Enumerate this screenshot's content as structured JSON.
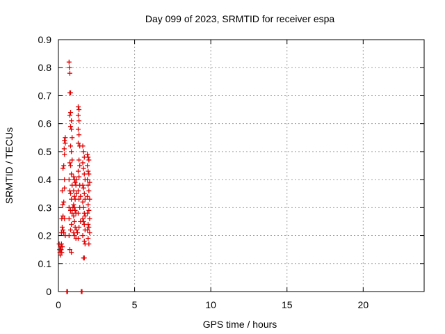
{
  "chart_data": {
    "type": "scatter",
    "title": "Day 099 of 2023, SRMTID for receiver espa",
    "xlabel": "GPS time / hours",
    "ylabel": "SRMTID / TECUs",
    "xlim": [
      0,
      24
    ],
    "ylim": [
      0,
      0.9
    ],
    "xticks": [
      0,
      5,
      10,
      15,
      20
    ],
    "xtick_labels": [
      "0",
      "5",
      "10",
      "15",
      "20"
    ],
    "yticks": [
      0,
      0.1,
      0.2,
      0.3,
      0.4,
      0.5,
      0.6,
      0.7,
      0.8,
      0.9
    ],
    "ytick_labels": [
      "0",
      "0.1",
      "0.2",
      "0.3",
      "0.4",
      "0.5",
      "0.6",
      "0.7",
      "0.8",
      "0.9"
    ],
    "grid": true,
    "marker": "plus",
    "color": "#e00000",
    "series": [
      {
        "points": [
          [
            0.05,
            0.17
          ],
          [
            0.08,
            0.15
          ],
          [
            0.1,
            0.14
          ],
          [
            0.12,
            0.13
          ],
          [
            0.15,
            0.16
          ],
          [
            0.18,
            0.15
          ],
          [
            0.2,
            0.17
          ],
          [
            0.22,
            0.14
          ],
          [
            0.12,
            0.15
          ],
          [
            0.25,
            0.16
          ],
          [
            0.2,
            0.21
          ],
          [
            0.25,
            0.23
          ],
          [
            0.3,
            0.22
          ],
          [
            0.22,
            0.26
          ],
          [
            0.3,
            0.27
          ],
          [
            0.35,
            0.21
          ],
          [
            0.28,
            0.31
          ],
          [
            0.35,
            0.32
          ],
          [
            0.25,
            0.36
          ],
          [
            0.4,
            0.37
          ],
          [
            0.3,
            0.44
          ],
          [
            0.35,
            0.45
          ],
          [
            0.4,
            0.49
          ],
          [
            0.38,
            0.51
          ],
          [
            0.45,
            0.53
          ],
          [
            0.4,
            0.54
          ],
          [
            0.45,
            0.55
          ],
          [
            0.4,
            0.4
          ],
          [
            0.45,
            0.2
          ],
          [
            0.4,
            0.26
          ],
          [
            0.7,
            0.82
          ],
          [
            0.72,
            0.8
          ],
          [
            0.75,
            0.78
          ],
          [
            0.8,
            0.71
          ],
          [
            0.75,
            0.71
          ],
          [
            0.75,
            0.63
          ],
          [
            0.8,
            0.64
          ],
          [
            0.85,
            0.61
          ],
          [
            0.8,
            0.59
          ],
          [
            0.85,
            0.58
          ],
          [
            0.9,
            0.55
          ],
          [
            0.8,
            0.52
          ],
          [
            0.85,
            0.5
          ],
          [
            0.9,
            0.47
          ],
          [
            0.75,
            0.46
          ],
          [
            0.8,
            0.45
          ],
          [
            0.85,
            0.42
          ],
          [
            0.7,
            0.4
          ],
          [
            0.75,
            0.36
          ],
          [
            0.8,
            0.35
          ],
          [
            0.85,
            0.33
          ],
          [
            0.7,
            0.3
          ],
          [
            0.8,
            0.29
          ],
          [
            0.9,
            0.28
          ],
          [
            0.7,
            0.26
          ],
          [
            0.85,
            0.24
          ],
          [
            0.8,
            0.22
          ],
          [
            0.7,
            0.2
          ],
          [
            0.75,
            0.15
          ],
          [
            0.85,
            0.14
          ],
          [
            0.9,
            0.38
          ],
          [
            0.95,
            0.3
          ],
          [
            1.0,
            0.41
          ],
          [
            1.05,
            0.4
          ],
          [
            1.1,
            0.39
          ],
          [
            1.0,
            0.36
          ],
          [
            1.05,
            0.34
          ],
          [
            1.1,
            0.33
          ],
          [
            1.0,
            0.31
          ],
          [
            1.05,
            0.3
          ],
          [
            1.1,
            0.29
          ],
          [
            1.0,
            0.27
          ],
          [
            1.05,
            0.25
          ],
          [
            1.1,
            0.23
          ],
          [
            1.0,
            0.21
          ],
          [
            1.05,
            0.2
          ],
          [
            1.15,
            0.19
          ],
          [
            1.2,
            0.22
          ],
          [
            1.15,
            0.28
          ],
          [
            1.2,
            0.35
          ],
          [
            1.15,
            0.38
          ],
          [
            1.2,
            0.4
          ],
          [
            1.3,
            0.66
          ],
          [
            1.35,
            0.65
          ],
          [
            1.3,
            0.63
          ],
          [
            1.35,
            0.61
          ],
          [
            1.3,
            0.58
          ],
          [
            1.35,
            0.56
          ],
          [
            1.3,
            0.53
          ],
          [
            1.4,
            0.52
          ],
          [
            1.35,
            0.47
          ],
          [
            1.4,
            0.45
          ],
          [
            1.3,
            0.43
          ],
          [
            1.35,
            0.41
          ],
          [
            1.4,
            0.38
          ],
          [
            1.3,
            0.36
          ],
          [
            1.45,
            0.34
          ],
          [
            1.35,
            0.33
          ],
          [
            1.4,
            0.3
          ],
          [
            1.3,
            0.28
          ],
          [
            1.45,
            0.25
          ],
          [
            1.35,
            0.23
          ],
          [
            1.25,
            0.21
          ],
          [
            1.3,
            0.19
          ],
          [
            1.6,
            0.52
          ],
          [
            1.65,
            0.5
          ],
          [
            1.7,
            0.48
          ],
          [
            1.6,
            0.46
          ],
          [
            1.65,
            0.44
          ],
          [
            1.7,
            0.42
          ],
          [
            1.75,
            0.4
          ],
          [
            1.6,
            0.38
          ],
          [
            1.65,
            0.37
          ],
          [
            1.7,
            0.35
          ],
          [
            1.75,
            0.33
          ],
          [
            1.6,
            0.32
          ],
          [
            1.65,
            0.3
          ],
          [
            1.7,
            0.28
          ],
          [
            1.75,
            0.27
          ],
          [
            1.6,
            0.26
          ],
          [
            1.65,
            0.25
          ],
          [
            1.7,
            0.24
          ],
          [
            1.75,
            0.22
          ],
          [
            1.6,
            0.2
          ],
          [
            1.7,
            0.18
          ],
          [
            1.75,
            0.17
          ],
          [
            1.65,
            0.12
          ],
          [
            1.7,
            0.12
          ],
          [
            1.9,
            0.49
          ],
          [
            1.95,
            0.48
          ],
          [
            2.0,
            0.47
          ],
          [
            1.9,
            0.45
          ],
          [
            1.95,
            0.43
          ],
          [
            2.0,
            0.42
          ],
          [
            1.9,
            0.4
          ],
          [
            2.05,
            0.39
          ],
          [
            1.95,
            0.38
          ],
          [
            2.0,
            0.36
          ],
          [
            1.9,
            0.34
          ],
          [
            2.05,
            0.33
          ],
          [
            1.95,
            0.31
          ],
          [
            2.0,
            0.29
          ],
          [
            1.9,
            0.28
          ],
          [
            2.05,
            0.26
          ],
          [
            1.95,
            0.24
          ],
          [
            2.0,
            0.23
          ],
          [
            1.9,
            0.22
          ],
          [
            2.05,
            0.21
          ],
          [
            1.95,
            0.19
          ],
          [
            2.0,
            0.17
          ],
          [
            0.55,
            0.0
          ],
          [
            0.6,
            0.0
          ],
          [
            1.5,
            0.0
          ],
          [
            1.55,
            0.0
          ]
        ]
      }
    ]
  }
}
